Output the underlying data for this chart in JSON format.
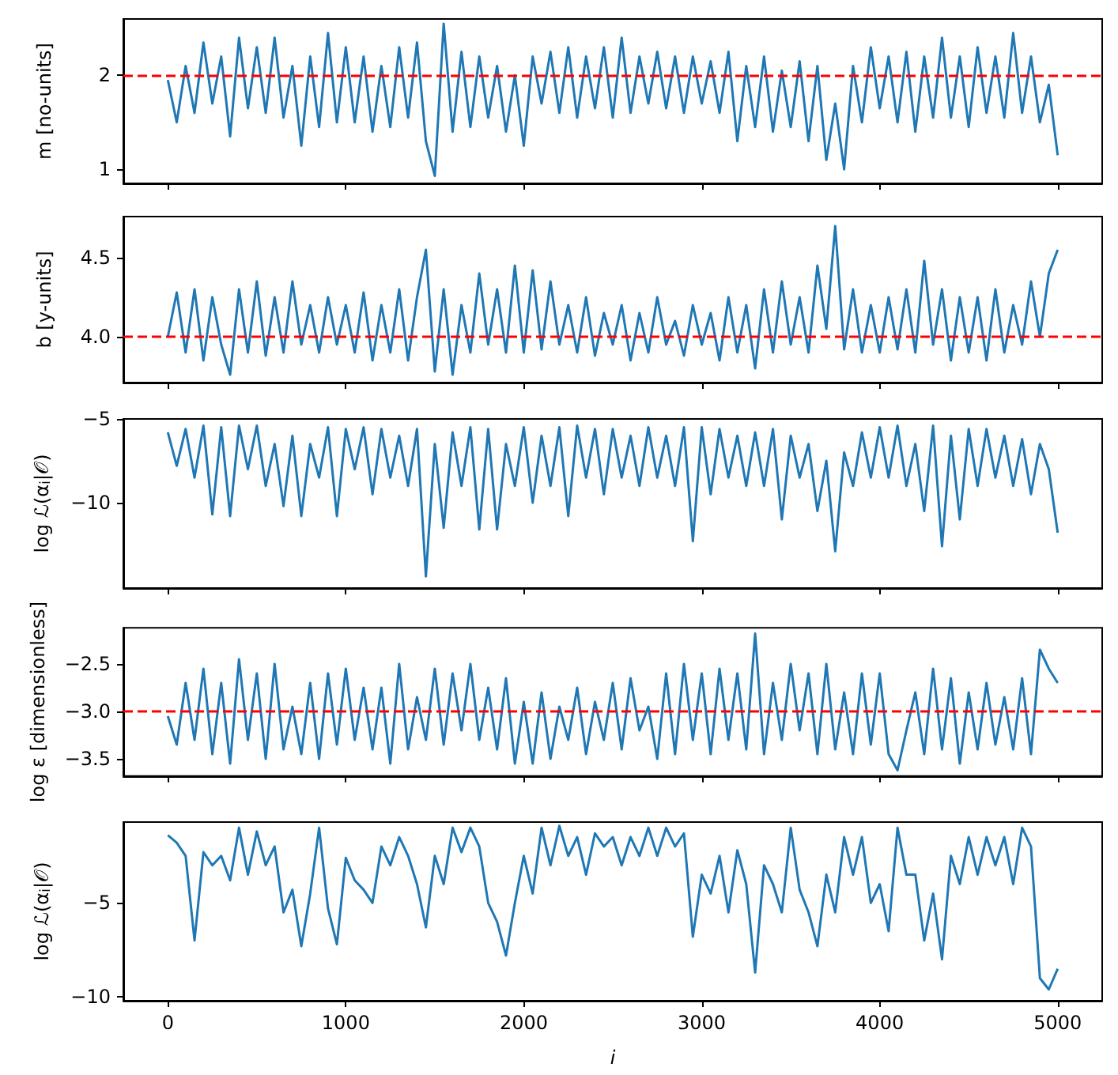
{
  "chart_data": [
    {
      "type": "line",
      "ylabel": "m [no-units]",
      "xlim": [
        -250,
        5250
      ],
      "xticks": [
        0,
        1000,
        2000,
        3000,
        4000,
        5000
      ],
      "ylim": [
        0.85,
        2.6
      ],
      "yticks": [
        1,
        2
      ],
      "tick_labels": "y",
      "x": [
        0,
        50,
        100,
        150,
        200,
        250,
        300,
        350,
        400,
        450,
        500,
        550,
        600,
        650,
        700,
        750,
        800,
        850,
        900,
        950,
        1000,
        1050,
        1100,
        1150,
        1200,
        1250,
        1300,
        1350,
        1400,
        1450,
        1500,
        1550,
        1600,
        1650,
        1700,
        1750,
        1800,
        1850,
        1900,
        1950,
        2000,
        2050,
        2100,
        2150,
        2200,
        2250,
        2300,
        2350,
        2400,
        2450,
        2500,
        2550,
        2600,
        2650,
        2700,
        2750,
        2800,
        2850,
        2900,
        2950,
        3000,
        3050,
        3100,
        3150,
        3200,
        3250,
        3300,
        3350,
        3400,
        3450,
        3500,
        3550,
        3600,
        3650,
        3700,
        3750,
        3800,
        3850,
        3900,
        3950,
        4000,
        4050,
        4100,
        4150,
        4200,
        4250,
        4300,
        4350,
        4400,
        4450,
        4500,
        4550,
        4600,
        4650,
        4700,
        4750,
        4800,
        4850,
        4900,
        4950,
        5000
      ],
      "series": [
        {
          "color": "#1f77b4",
          "values": [
            1.95,
            1.5,
            2.1,
            1.6,
            2.35,
            1.7,
            2.2,
            1.35,
            2.4,
            1.65,
            2.3,
            1.6,
            2.4,
            1.55,
            2.1,
            1.25,
            2.2,
            1.45,
            2.45,
            1.5,
            2.3,
            1.5,
            2.2,
            1.4,
            2.1,
            1.45,
            2.3,
            1.55,
            2.35,
            1.3,
            0.93,
            2.55,
            1.4,
            2.25,
            1.45,
            2.2,
            1.55,
            2.1,
            1.4,
            2.0,
            1.25,
            2.2,
            1.7,
            2.25,
            1.6,
            2.3,
            1.55,
            2.2,
            1.65,
            2.3,
            1.55,
            2.4,
            1.6,
            2.2,
            1.7,
            2.25,
            1.65,
            2.2,
            1.6,
            2.2,
            1.7,
            2.15,
            1.6,
            2.25,
            1.3,
            2.1,
            1.45,
            2.2,
            1.4,
            2.05,
            1.45,
            2.15,
            1.3,
            2.1,
            1.1,
            1.7,
            1.0,
            2.1,
            1.5,
            2.3,
            1.65,
            2.2,
            1.5,
            2.25,
            1.4,
            2.2,
            1.55,
            2.4,
            1.55,
            2.2,
            1.45,
            2.3,
            1.6,
            2.2,
            1.55,
            2.45,
            1.6,
            2.2,
            1.5,
            1.9,
            1.15
          ]
        }
      ],
      "ref_lines": [
        {
          "axis": "y",
          "value": 2,
          "color": "#ff0000",
          "line_style": "dashed"
        }
      ]
    },
    {
      "type": "line",
      "ylabel": "b [y-units]",
      "xlim": [
        -250,
        5250
      ],
      "xticks": [
        0,
        1000,
        2000,
        3000,
        4000,
        5000
      ],
      "ylim": [
        3.71,
        4.76
      ],
      "yticks": [
        {
          "value": 4,
          "label": "4.0"
        },
        4.5
      ],
      "tick_labels": "y",
      "x": [
        0,
        50,
        100,
        150,
        200,
        250,
        300,
        350,
        400,
        450,
        500,
        550,
        600,
        650,
        700,
        750,
        800,
        850,
        900,
        950,
        1000,
        1050,
        1100,
        1150,
        1200,
        1250,
        1300,
        1350,
        1400,
        1450,
        1500,
        1550,
        1600,
        1650,
        1700,
        1750,
        1800,
        1850,
        1900,
        1950,
        2000,
        2050,
        2100,
        2150,
        2200,
        2250,
        2300,
        2350,
        2400,
        2450,
        2500,
        2550,
        2600,
        2650,
        2700,
        2750,
        2800,
        2850,
        2900,
        2950,
        3000,
        3050,
        3100,
        3150,
        3200,
        3250,
        3300,
        3350,
        3400,
        3450,
        3500,
        3550,
        3600,
        3650,
        3700,
        3750,
        3800,
        3850,
        3900,
        3950,
        4000,
        4050,
        4100,
        4150,
        4200,
        4250,
        4300,
        4350,
        4400,
        4450,
        4500,
        4550,
        4600,
        4650,
        4700,
        4750,
        4800,
        4850,
        4900,
        4950,
        5000
      ],
      "series": [
        {
          "color": "#1f77b4",
          "values": [
            4.0,
            4.28,
            3.9,
            4.3,
            3.85,
            4.25,
            3.95,
            3.76,
            4.3,
            3.9,
            4.35,
            3.88,
            4.25,
            3.9,
            4.35,
            3.95,
            4.2,
            3.9,
            4.25,
            3.95,
            4.2,
            3.9,
            4.28,
            3.85,
            4.2,
            3.9,
            4.3,
            3.85,
            4.25,
            4.55,
            3.78,
            4.3,
            3.76,
            4.2,
            3.9,
            4.4,
            3.95,
            4.3,
            3.9,
            4.45,
            3.9,
            4.42,
            3.92,
            4.35,
            3.95,
            4.2,
            3.9,
            4.25,
            3.88,
            4.15,
            3.95,
            4.2,
            3.85,
            4.15,
            3.9,
            4.25,
            3.95,
            4.1,
            3.88,
            4.2,
            3.95,
            4.15,
            3.85,
            4.25,
            3.9,
            4.2,
            3.8,
            4.3,
            3.9,
            4.35,
            3.95,
            4.25,
            3.9,
            4.45,
            4.05,
            4.7,
            3.92,
            4.3,
            3.9,
            4.2,
            3.9,
            4.25,
            3.92,
            4.3,
            3.9,
            4.48,
            3.95,
            4.3,
            3.85,
            4.25,
            3.9,
            4.25,
            3.85,
            4.3,
            3.9,
            4.2,
            3.95,
            4.35,
            4.0,
            4.4,
            4.55
          ]
        }
      ],
      "ref_lines": [
        {
          "axis": "y",
          "value": 4,
          "color": "#ff0000",
          "line_style": "dashed"
        }
      ]
    },
    {
      "type": "line",
      "ylabel": "log ℒ(α$_{i}$|𝒪)",
      "xlim": [
        -250,
        5250
      ],
      "xticks": [
        0,
        1000,
        2000,
        3000,
        4000,
        5000
      ],
      "ylim": [
        -15.1,
        -5
      ],
      "yticks": [
        {
          "value": -10,
          "label": "−10"
        },
        {
          "value": -5,
          "label": "−5"
        }
      ],
      "tick_labels": "y",
      "x": [
        0,
        50,
        100,
        150,
        200,
        250,
        300,
        350,
        400,
        450,
        500,
        550,
        600,
        650,
        700,
        750,
        800,
        850,
        900,
        950,
        1000,
        1050,
        1100,
        1150,
        1200,
        1250,
        1300,
        1350,
        1400,
        1450,
        1500,
        1550,
        1600,
        1650,
        1700,
        1750,
        1800,
        1850,
        1900,
        1950,
        2000,
        2050,
        2100,
        2150,
        2200,
        2250,
        2300,
        2350,
        2400,
        2450,
        2500,
        2550,
        2600,
        2650,
        2700,
        2750,
        2800,
        2850,
        2900,
        2950,
        3000,
        3050,
        3100,
        3150,
        3200,
        3250,
        3300,
        3350,
        3400,
        3450,
        3500,
        3550,
        3600,
        3650,
        3700,
        3750,
        3800,
        3850,
        3900,
        3950,
        4000,
        4050,
        4100,
        4150,
        4200,
        4250,
        4300,
        4350,
        4400,
        4450,
        4500,
        4550,
        4600,
        4650,
        4700,
        4750,
        4800,
        4850,
        4900,
        4950,
        5000
      ],
      "series": [
        {
          "color": "#1f77b4",
          "values": [
            -5.8,
            -7.8,
            -5.6,
            -8.5,
            -5.4,
            -10.7,
            -5.5,
            -10.8,
            -5.4,
            -8.0,
            -5.4,
            -9.0,
            -6.5,
            -10.2,
            -6.0,
            -10.8,
            -6.5,
            -8.5,
            -5.5,
            -10.8,
            -5.6,
            -8.0,
            -5.5,
            -9.5,
            -5.6,
            -8.5,
            -6.0,
            -9.0,
            -5.6,
            -14.4,
            -6.5,
            -11.5,
            -5.8,
            -9.0,
            -5.5,
            -11.6,
            -5.6,
            -11.6,
            -6.5,
            -9.0,
            -5.5,
            -10.0,
            -6.0,
            -9.0,
            -5.5,
            -10.8,
            -5.4,
            -8.5,
            -5.6,
            -9.5,
            -5.6,
            -8.5,
            -6.0,
            -9.0,
            -5.5,
            -8.5,
            -6.0,
            -9.0,
            -5.5,
            -12.3,
            -5.5,
            -9.5,
            -5.6,
            -8.5,
            -6.0,
            -9.0,
            -5.8,
            -9.0,
            -5.6,
            -11.0,
            -6.0,
            -8.5,
            -6.5,
            -10.5,
            -7.5,
            -12.9,
            -7.0,
            -9.0,
            -5.8,
            -8.5,
            -5.5,
            -8.5,
            -5.4,
            -9.0,
            -6.5,
            -10.5,
            -5.4,
            -12.6,
            -6.0,
            -11.0,
            -5.6,
            -9.0,
            -5.6,
            -8.5,
            -6.0,
            -9.0,
            -6.2,
            -9.5,
            -6.5,
            -8.0,
            -11.8
          ]
        }
      ]
    },
    {
      "type": "line",
      "ylabel": "log ε [dimensionless]",
      "xlim": [
        -250,
        5250
      ],
      "xticks": [
        0,
        1000,
        2000,
        3000,
        4000,
        5000
      ],
      "ylim": [
        -3.68,
        -2.12
      ],
      "yticks": [
        {
          "value": -3.5,
          "label": "−3.5"
        },
        {
          "value": -3,
          "label": "−3.0"
        },
        {
          "value": -2.5,
          "label": "−2.5"
        }
      ],
      "tick_labels": "y",
      "x": [
        0,
        50,
        100,
        150,
        200,
        250,
        300,
        350,
        400,
        450,
        500,
        550,
        600,
        650,
        700,
        750,
        800,
        850,
        900,
        950,
        1000,
        1050,
        1100,
        1150,
        1200,
        1250,
        1300,
        1350,
        1400,
        1450,
        1500,
        1550,
        1600,
        1650,
        1700,
        1750,
        1800,
        1850,
        1900,
        1950,
        2000,
        2050,
        2100,
        2150,
        2200,
        2250,
        2300,
        2350,
        2400,
        2450,
        2500,
        2550,
        2600,
        2650,
        2700,
        2750,
        2800,
        2850,
        2900,
        2950,
        3000,
        3050,
        3100,
        3150,
        3200,
        3250,
        3300,
        3350,
        3400,
        3450,
        3500,
        3550,
        3600,
        3650,
        3700,
        3750,
        3800,
        3850,
        3900,
        3950,
        4000,
        4050,
        4100,
        4150,
        4200,
        4250,
        4300,
        4350,
        4400,
        4450,
        4500,
        4550,
        4600,
        4650,
        4700,
        4750,
        4800,
        4850,
        4900,
        4950,
        5000
      ],
      "series": [
        {
          "color": "#1f77b4",
          "values": [
            -3.05,
            -3.35,
            -2.7,
            -3.3,
            -2.55,
            -3.45,
            -2.7,
            -3.55,
            -2.45,
            -3.3,
            -2.6,
            -3.5,
            -2.5,
            -3.4,
            -2.95,
            -3.45,
            -2.7,
            -3.5,
            -2.6,
            -3.35,
            -2.55,
            -3.3,
            -2.75,
            -3.4,
            -2.75,
            -3.55,
            -2.5,
            -3.4,
            -2.85,
            -3.3,
            -2.55,
            -3.35,
            -2.6,
            -3.2,
            -2.5,
            -3.3,
            -2.75,
            -3.4,
            -2.65,
            -3.55,
            -2.9,
            -3.55,
            -2.8,
            -3.5,
            -2.95,
            -3.3,
            -2.75,
            -3.45,
            -2.9,
            -3.3,
            -2.7,
            -3.4,
            -2.65,
            -3.2,
            -2.95,
            -3.5,
            -2.6,
            -3.45,
            -2.5,
            -3.3,
            -2.6,
            -3.45,
            -2.55,
            -3.3,
            -2.6,
            -3.4,
            -2.18,
            -3.45,
            -2.7,
            -3.3,
            -2.5,
            -3.2,
            -2.6,
            -3.45,
            -2.5,
            -3.4,
            -2.8,
            -3.45,
            -2.6,
            -3.35,
            -2.6,
            -3.45,
            -3.62,
            -3.2,
            -2.8,
            -3.45,
            -2.55,
            -3.4,
            -2.65,
            -3.55,
            -2.8,
            -3.4,
            -2.7,
            -3.35,
            -2.85,
            -3.4,
            -2.65,
            -3.45,
            -2.35,
            -2.55,
            -2.7
          ]
        }
      ],
      "ref_lines": [
        {
          "axis": "y",
          "value": -3,
          "color": "#ff0000",
          "line_style": "dashed"
        }
      ]
    },
    {
      "type": "line",
      "ylabel": "log ℒ(α$_{i}$|𝒪)",
      "xlabel": "i",
      "xlim": [
        -250,
        5250
      ],
      "xticks": [
        0,
        1000,
        2000,
        3000,
        4000,
        5000
      ],
      "ylim": [
        -10.2,
        -0.7
      ],
      "yticks": [
        {
          "value": -10,
          "label": "−10"
        },
        {
          "value": -5,
          "label": "−5"
        }
      ],
      "x": [
        0,
        50,
        100,
        150,
        200,
        250,
        300,
        350,
        400,
        450,
        500,
        550,
        600,
        650,
        700,
        750,
        800,
        850,
        900,
        950,
        1000,
        1050,
        1100,
        1150,
        1200,
        1250,
        1300,
        1350,
        1400,
        1450,
        1500,
        1550,
        1600,
        1650,
        1700,
        1750,
        1800,
        1850,
        1900,
        1950,
        2000,
        2050,
        2100,
        2150,
        2200,
        2250,
        2300,
        2350,
        2400,
        2450,
        2500,
        2550,
        2600,
        2650,
        2700,
        2750,
        2800,
        2850,
        2900,
        2950,
        3000,
        3050,
        3100,
        3150,
        3200,
        3250,
        3300,
        3350,
        3400,
        3450,
        3500,
        3550,
        3600,
        3650,
        3700,
        3750,
        3800,
        3850,
        3900,
        3950,
        4000,
        4050,
        4100,
        4150,
        4200,
        4250,
        4300,
        4350,
        4400,
        4450,
        4500,
        4550,
        4600,
        4650,
        4700,
        4750,
        4800,
        4850,
        4900,
        4950,
        5000
      ],
      "series": [
        {
          "color": "#1f77b4",
          "values": [
            -1.4,
            -1.8,
            -2.5,
            -7.0,
            -2.3,
            -3.0,
            -2.5,
            -3.8,
            -1.0,
            -3.5,
            -1.2,
            -3.0,
            -2.0,
            -5.5,
            -4.3,
            -7.3,
            -4.5,
            -1.0,
            -5.3,
            -7.2,
            -2.6,
            -3.8,
            -4.3,
            -5.0,
            -2.0,
            -3.0,
            -1.5,
            -2.5,
            -4.0,
            -6.3,
            -2.5,
            -4.0,
            -1.0,
            -2.3,
            -1.0,
            -2.0,
            -5.0,
            -6.0,
            -7.8,
            -5.0,
            -2.5,
            -4.5,
            -1.0,
            -3.0,
            -0.9,
            -2.5,
            -1.5,
            -3.5,
            -1.3,
            -2.0,
            -1.5,
            -3.0,
            -1.5,
            -2.5,
            -1.0,
            -2.5,
            -1.0,
            -2.0,
            -1.3,
            -6.8,
            -3.5,
            -4.5,
            -2.5,
            -5.5,
            -2.2,
            -4.0,
            -8.7,
            -3.0,
            -4.0,
            -5.5,
            -1.0,
            -4.3,
            -5.5,
            -7.3,
            -3.5,
            -5.5,
            -1.5,
            -3.5,
            -1.5,
            -5.0,
            -4.0,
            -6.5,
            -1.0,
            -3.5,
            -3.5,
            -7.0,
            -4.5,
            -8.0,
            -2.5,
            -4.0,
            -1.5,
            -3.5,
            -1.5,
            -3.0,
            -1.5,
            -4.0,
            -1.0,
            -2.0,
            -9.0,
            -9.6,
            -8.5
          ]
        }
      ]
    }
  ]
}
